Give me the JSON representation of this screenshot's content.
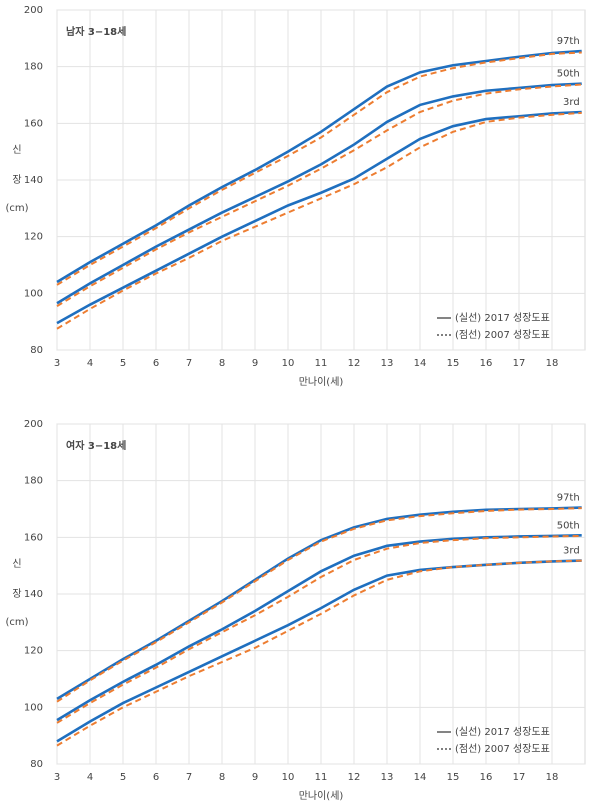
{
  "chart_data": [
    {
      "type": "line",
      "title": "남자 3−18세",
      "ylabel": [
        "신",
        "장",
        "(cm)"
      ],
      "xlabel": "만나이(세)",
      "x": [
        3,
        4,
        5,
        6,
        7,
        8,
        9,
        10,
        11,
        12,
        13,
        14,
        15,
        16,
        17,
        18,
        18.9
      ],
      "xlim": [
        3,
        19
      ],
      "xticks": [
        3,
        4,
        5,
        6,
        7,
        8,
        9,
        10,
        11,
        12,
        13,
        14,
        15,
        16,
        17,
        18
      ],
      "ylim": [
        80,
        200
      ],
      "yticks": [
        80,
        100,
        120,
        140,
        160,
        180,
        200
      ],
      "grid": true,
      "legend": [
        {
          "label": "(실선) 2017 성장도표",
          "color": "#1f6fbf",
          "dash": false
        },
        {
          "label": "(점선) 2007 성장도표",
          "color": "#ed7d31",
          "dash": true
        }
      ],
      "series": [
        {
          "name": "97th",
          "values": [
            104,
            111,
            117.5,
            124,
            131,
            137.5,
            143.5,
            150,
            157,
            165,
            173,
            178,
            180.5,
            182,
            183.5,
            184.8,
            185.5
          ],
          "values_2007": [
            103,
            110,
            116.5,
            123,
            130,
            136.5,
            142.5,
            148.5,
            155,
            163,
            171,
            176.5,
            179.5,
            181.5,
            183,
            184.5,
            185
          ]
        },
        {
          "name": "50th",
          "values": [
            96.5,
            103.5,
            110,
            116.5,
            122.5,
            128.5,
            134,
            139.5,
            145.5,
            152.5,
            160.5,
            166.5,
            169.5,
            171.5,
            172.5,
            173.5,
            174
          ],
          "values_2007": [
            95.5,
            102.5,
            109,
            115.5,
            121.5,
            127,
            132.5,
            138,
            144,
            150.5,
            157.5,
            164,
            168,
            170.5,
            172,
            173,
            173.7
          ]
        },
        {
          "name": "3rd",
          "values": [
            89.5,
            96,
            102,
            108,
            114,
            120,
            125.5,
            131,
            135.5,
            140.5,
            147.5,
            154.5,
            159,
            161.5,
            162.5,
            163.5,
            164
          ],
          "values_2007": [
            87.5,
            94.5,
            101,
            107,
            112.5,
            118.5,
            123.5,
            128.5,
            133.5,
            138.5,
            144.5,
            151.5,
            157,
            160.5,
            162,
            163,
            163.7
          ]
        }
      ]
    },
    {
      "type": "line",
      "title": "여자 3−18세",
      "ylabel": [
        "신",
        "장",
        "(cm)"
      ],
      "xlabel": "만나이(세)",
      "x": [
        3,
        4,
        5,
        6,
        7,
        8,
        9,
        10,
        11,
        12,
        13,
        14,
        15,
        16,
        17,
        18,
        18.9
      ],
      "xlim": [
        3,
        19
      ],
      "xticks": [
        3,
        4,
        5,
        6,
        7,
        8,
        9,
        10,
        11,
        12,
        13,
        14,
        15,
        16,
        17,
        18
      ],
      "ylim": [
        80,
        200
      ],
      "yticks": [
        80,
        100,
        120,
        140,
        160,
        180,
        200
      ],
      "grid": true,
      "legend": [
        {
          "label": "(실선) 2017 성장도표",
          "color": "#1f6fbf",
          "dash": false
        },
        {
          "label": "(점선) 2007 성장도표",
          "color": "#ed7d31",
          "dash": true
        }
      ],
      "series": [
        {
          "name": "97th",
          "values": [
            103,
            110,
            117,
            123.5,
            130.5,
            137.5,
            145,
            152.5,
            159,
            163.5,
            166.5,
            168,
            169,
            169.7,
            170,
            170.2,
            170.5
          ],
          "values_2007": [
            102,
            109.5,
            116.5,
            123,
            130,
            137,
            144.5,
            152,
            158.5,
            163,
            166,
            167.5,
            168.5,
            169.3,
            169.8,
            170,
            170.3
          ]
        },
        {
          "name": "50th",
          "values": [
            95.5,
            102.5,
            109,
            115,
            121.5,
            127.5,
            134,
            141,
            148,
            153.5,
            157,
            158.5,
            159.5,
            160,
            160.3,
            160.5,
            160.7
          ],
          "values_2007": [
            94.5,
            101.5,
            108,
            114,
            120.5,
            126.5,
            132.5,
            139,
            146,
            152,
            156,
            158,
            159,
            159.7,
            160,
            160.3,
            160.5
          ]
        },
        {
          "name": "3rd",
          "values": [
            88,
            95,
            101.5,
            107,
            112.5,
            118,
            123.5,
            129,
            135,
            141.5,
            146.5,
            148.5,
            149.5,
            150.3,
            151,
            151.5,
            151.8
          ],
          "values_2007": [
            86.5,
            93.5,
            100,
            105.5,
            111,
            116,
            121,
            127,
            133,
            139.5,
            145,
            148,
            149.5,
            150.3,
            151,
            151.5,
            151.8
          ]
        }
      ]
    }
  ]
}
